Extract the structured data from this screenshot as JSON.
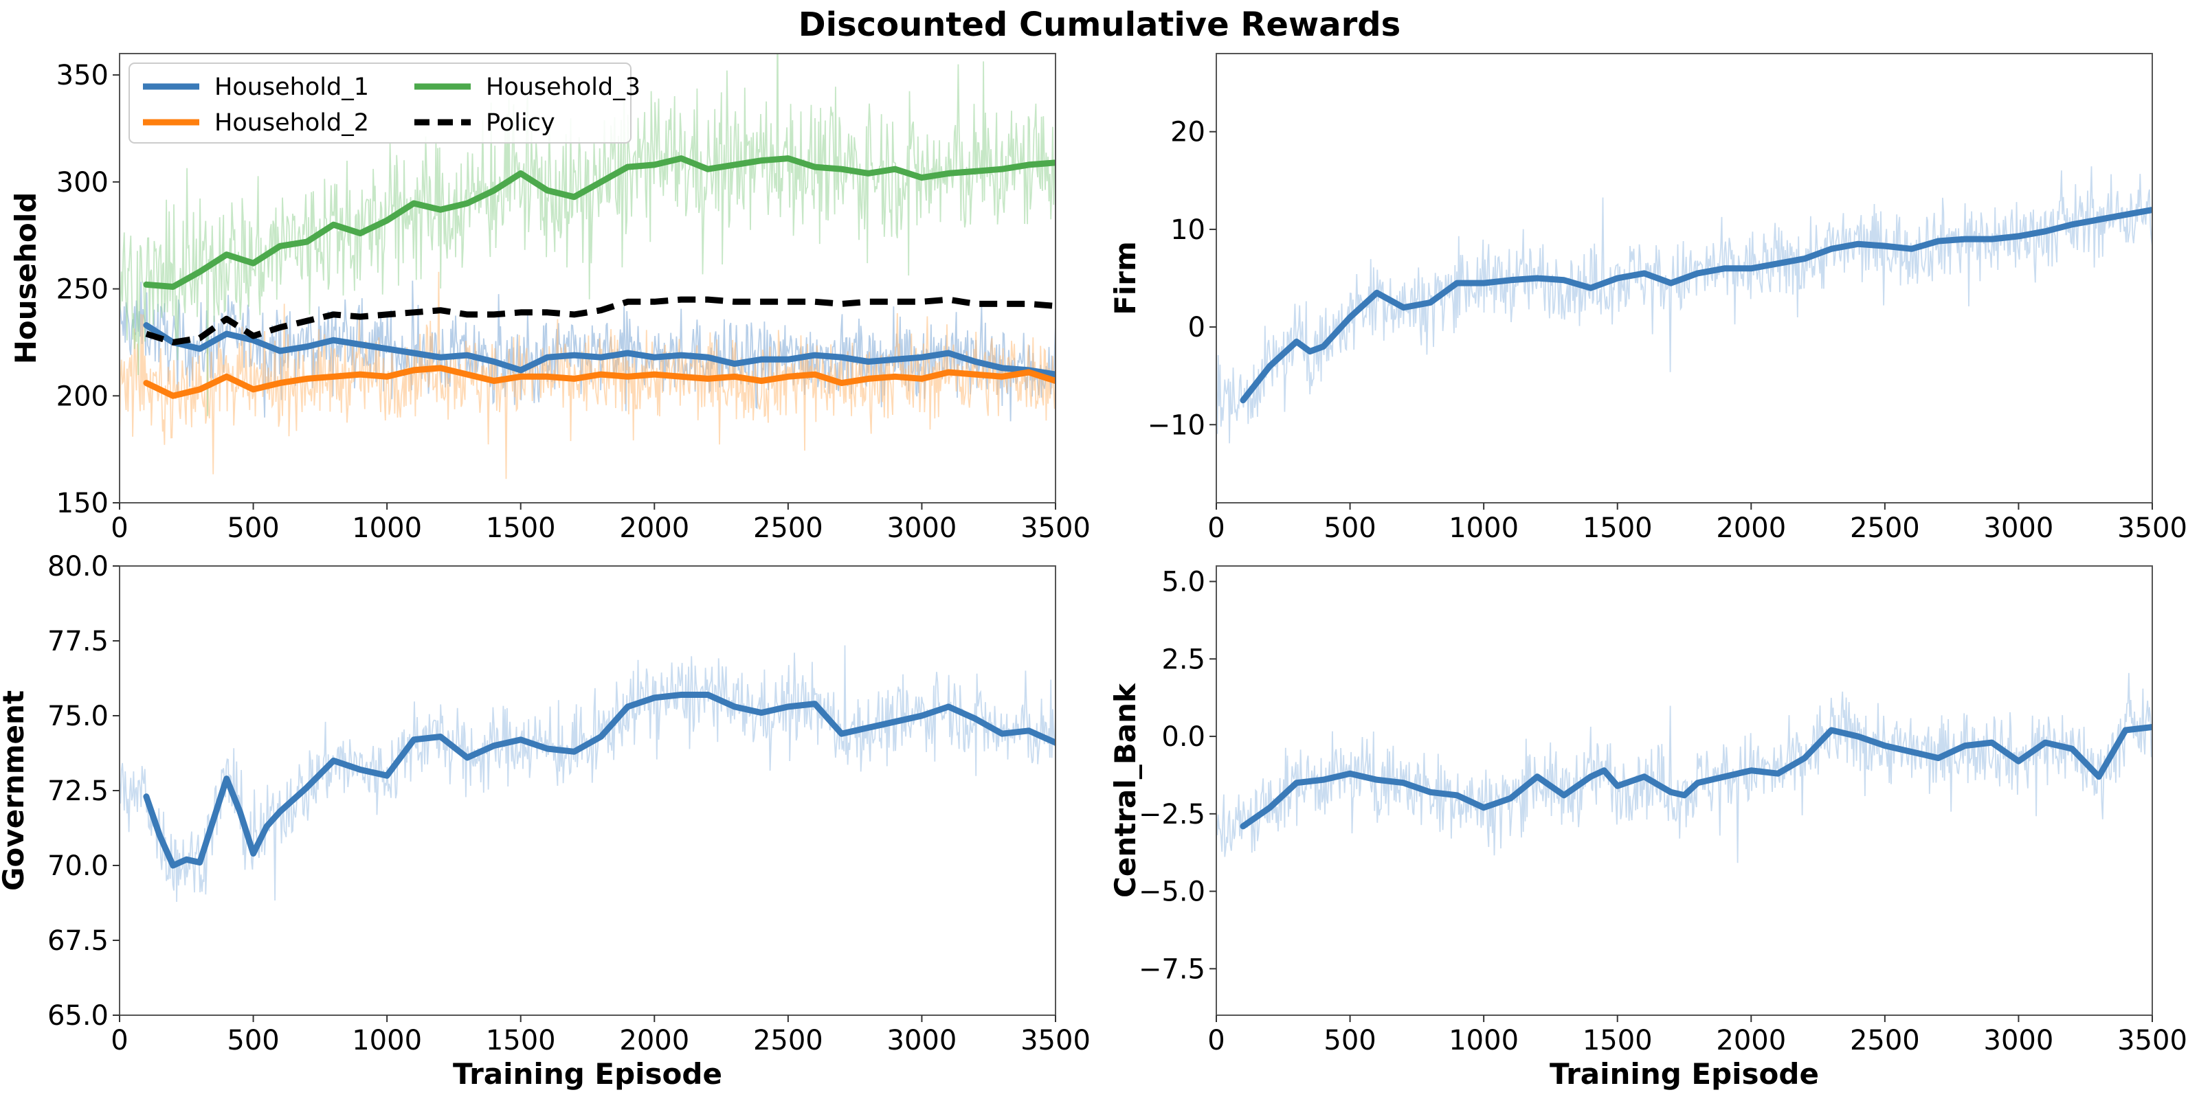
{
  "figure": {
    "title": "Discounted Cumulative Rewards"
  },
  "chart_data": [
    {
      "type": "line",
      "panel": "top-left",
      "title": "",
      "xlabel": "",
      "ylabel": "Household",
      "xlim": [
        0,
        3500
      ],
      "ylim": [
        150,
        360
      ],
      "xticks": [
        0,
        500,
        1000,
        1500,
        2000,
        2500,
        3000,
        3500
      ],
      "yticks": [
        150,
        200,
        250,
        300,
        350
      ],
      "tick_labels_x": [
        "0",
        "500",
        "1000",
        "1500",
        "2000",
        "2500",
        "3000",
        "3500"
      ],
      "tick_labels_y": [
        "150",
        "200",
        "250",
        "300",
        "350"
      ],
      "grid": false,
      "legend": {
        "placement": "top-left",
        "columns": 2
      },
      "series": [
        {
          "name": "Household_1",
          "color": "#3a7ab8",
          "raw_color": "#7aa6d6",
          "style": "solid",
          "x": [
            100,
            200,
            300,
            400,
            500,
            600,
            700,
            800,
            900,
            1000,
            1100,
            1200,
            1300,
            1400,
            1500,
            1600,
            1700,
            1800,
            1900,
            2000,
            2100,
            2200,
            2300,
            2400,
            2500,
            2600,
            2700,
            2800,
            2900,
            3000,
            3100,
            3200,
            3300,
            3400,
            3500
          ],
          "values": [
            233,
            225,
            222,
            229,
            226,
            221,
            223,
            226,
            224,
            222,
            220,
            218,
            219,
            216,
            212,
            218,
            219,
            218,
            220,
            218,
            219,
            218,
            215,
            217,
            217,
            219,
            218,
            216,
            217,
            218,
            220,
            216,
            213,
            212,
            210
          ]
        },
        {
          "name": "Household_2",
          "color": "#ff7f0e",
          "raw_color": "#ffbb78",
          "style": "solid",
          "x": [
            100,
            200,
            300,
            400,
            500,
            600,
            700,
            800,
            900,
            1000,
            1100,
            1200,
            1300,
            1400,
            1500,
            1600,
            1700,
            1800,
            1900,
            2000,
            2100,
            2200,
            2300,
            2400,
            2500,
            2600,
            2700,
            2800,
            2900,
            3000,
            3100,
            3200,
            3300,
            3400,
            3500
          ],
          "values": [
            206,
            200,
            203,
            209,
            203,
            206,
            208,
            209,
            210,
            209,
            212,
            213,
            210,
            207,
            209,
            209,
            208,
            210,
            209,
            210,
            209,
            208,
            209,
            207,
            209,
            210,
            206,
            208,
            209,
            208,
            211,
            210,
            209,
            211,
            207
          ]
        },
        {
          "name": "Household_3",
          "color": "#4ca94c",
          "raw_color": "#98d498",
          "style": "solid",
          "x": [
            100,
            200,
            300,
            400,
            500,
            600,
            700,
            800,
            900,
            1000,
            1100,
            1200,
            1300,
            1400,
            1500,
            1600,
            1700,
            1800,
            1900,
            2000,
            2100,
            2200,
            2300,
            2400,
            2500,
            2600,
            2700,
            2800,
            2900,
            3000,
            3100,
            3200,
            3300,
            3400,
            3500
          ],
          "values": [
            252,
            251,
            258,
            266,
            262,
            270,
            272,
            280,
            276,
            282,
            290,
            287,
            290,
            296,
            304,
            296,
            293,
            300,
            307,
            308,
            311,
            306,
            308,
            310,
            311,
            307,
            306,
            304,
            306,
            302,
            304,
            305,
            306,
            308,
            309
          ]
        },
        {
          "name": "Policy",
          "color": "#000000",
          "style": "dashed",
          "x": [
            100,
            200,
            300,
            400,
            500,
            600,
            700,
            800,
            900,
            1000,
            1100,
            1200,
            1300,
            1400,
            1500,
            1600,
            1700,
            1800,
            1900,
            2000,
            2100,
            2200,
            2300,
            2400,
            2500,
            2600,
            2700,
            2800,
            2900,
            3000,
            3100,
            3200,
            3300,
            3400,
            3500
          ],
          "values": [
            229,
            225,
            227,
            236,
            228,
            232,
            235,
            238,
            237,
            238,
            239,
            240,
            238,
            238,
            239,
            239,
            238,
            240,
            244,
            244,
            245,
            245,
            244,
            244,
            244,
            244,
            243,
            244,
            244,
            244,
            245,
            243,
            243,
            243,
            242
          ]
        }
      ]
    },
    {
      "type": "line",
      "panel": "top-right",
      "title": "",
      "xlabel": "",
      "ylabel": "Firm",
      "xlim": [
        0,
        3500
      ],
      "ylim": [
        -18,
        28
      ],
      "xticks": [
        0,
        500,
        1000,
        1500,
        2000,
        2500,
        3000,
        3500
      ],
      "yticks": [
        -10,
        0,
        10,
        20
      ],
      "tick_labels_x": [
        "0",
        "500",
        "1000",
        "1500",
        "2000",
        "2500",
        "3000",
        "3500"
      ],
      "tick_labels_y": [
        "−10",
        "0",
        "10",
        "20"
      ],
      "grid": false,
      "series": [
        {
          "color": "#3a7ab8",
          "raw_color": "#9cc0e4",
          "style": "solid",
          "x": [
            100,
            200,
            300,
            350,
            400,
            500,
            600,
            700,
            800,
            900,
            1000,
            1100,
            1200,
            1300,
            1400,
            1500,
            1600,
            1700,
            1800,
            1900,
            2000,
            2100,
            2200,
            2300,
            2400,
            2500,
            2600,
            2700,
            2800,
            2900,
            3000,
            3100,
            3200,
            3300,
            3400,
            3500
          ],
          "values": [
            -7.5,
            -4.0,
            -1.5,
            -2.5,
            -2.0,
            1.0,
            3.5,
            2.0,
            2.5,
            4.5,
            4.5,
            4.8,
            5.0,
            4.8,
            4.0,
            5.0,
            5.5,
            4.5,
            5.5,
            6.0,
            6.0,
            6.5,
            7.0,
            8.0,
            8.5,
            8.3,
            8.0,
            8.8,
            9.0,
            9.0,
            9.3,
            9.8,
            10.5,
            11.0,
            11.5,
            12.0
          ]
        }
      ]
    },
    {
      "type": "line",
      "panel": "bottom-left",
      "title": "",
      "xlabel": "Training Episode",
      "ylabel": "Government",
      "xlim": [
        0,
        3500
      ],
      "ylim": [
        65,
        80
      ],
      "xticks": [
        0,
        500,
        1000,
        1500,
        2000,
        2500,
        3000,
        3500
      ],
      "yticks": [
        65,
        67.5,
        70,
        72.5,
        75,
        77.5,
        80
      ],
      "tick_labels_x": [
        "0",
        "500",
        "1000",
        "1500",
        "2000",
        "2500",
        "3000",
        "3500"
      ],
      "tick_labels_y": [
        "65.0",
        "67.5",
        "70.0",
        "72.5",
        "75.0",
        "77.5",
        "80.0"
      ],
      "grid": false,
      "series": [
        {
          "color": "#3a7ab8",
          "raw_color": "#9cc0e4",
          "style": "solid",
          "x": [
            100,
            150,
            200,
            250,
            300,
            350,
            400,
            450,
            500,
            550,
            600,
            700,
            800,
            900,
            1000,
            1100,
            1200,
            1300,
            1400,
            1500,
            1600,
            1700,
            1800,
            1900,
            2000,
            2100,
            2200,
            2300,
            2400,
            2500,
            2600,
            2700,
            2800,
            2900,
            3000,
            3100,
            3200,
            3300,
            3400,
            3500
          ],
          "values": [
            72.3,
            71.0,
            70.0,
            70.2,
            70.1,
            71.5,
            72.9,
            71.8,
            70.4,
            71.3,
            71.8,
            72.6,
            73.5,
            73.2,
            73.0,
            74.2,
            74.3,
            73.6,
            74.0,
            74.2,
            73.9,
            73.8,
            74.3,
            75.3,
            75.6,
            75.7,
            75.7,
            75.3,
            75.1,
            75.3,
            75.4,
            74.4,
            74.6,
            74.8,
            75.0,
            75.3,
            74.9,
            74.4,
            74.5,
            74.1
          ]
        }
      ]
    },
    {
      "type": "line",
      "panel": "bottom-right",
      "title": "",
      "xlabel": "Training Episode",
      "ylabel": "Central_Bank",
      "xlim": [
        0,
        3500
      ],
      "ylim": [
        -9,
        5.5
      ],
      "xticks": [
        0,
        500,
        1000,
        1500,
        2000,
        2500,
        3000,
        3500
      ],
      "yticks": [
        -7.5,
        -5,
        -2.5,
        0,
        2.5,
        5
      ],
      "tick_labels_x": [
        "0",
        "500",
        "1000",
        "1500",
        "2000",
        "2500",
        "3000",
        "3500"
      ],
      "tick_labels_y": [
        "−7.5",
        "−5.0",
        "−2.5",
        "0.0",
        "2.5",
        "5.0"
      ],
      "grid": false,
      "series": [
        {
          "color": "#3a7ab8",
          "raw_color": "#9cc0e4",
          "style": "solid",
          "x": [
            100,
            200,
            300,
            400,
            500,
            600,
            700,
            800,
            900,
            1000,
            1100,
            1200,
            1300,
            1400,
            1450,
            1500,
            1600,
            1700,
            1750,
            1800,
            1900,
            2000,
            2100,
            2200,
            2300,
            2400,
            2500,
            2600,
            2700,
            2800,
            2900,
            3000,
            3100,
            3200,
            3300,
            3400,
            3500
          ],
          "values": [
            -2.9,
            -2.3,
            -1.5,
            -1.4,
            -1.2,
            -1.4,
            -1.5,
            -1.8,
            -1.9,
            -2.3,
            -2.0,
            -1.3,
            -1.9,
            -1.3,
            -1.1,
            -1.6,
            -1.3,
            -1.8,
            -1.9,
            -1.5,
            -1.3,
            -1.1,
            -1.2,
            -0.7,
            0.2,
            0.0,
            -0.3,
            -0.5,
            -0.7,
            -0.3,
            -0.2,
            -0.8,
            -0.2,
            -0.4,
            -1.3,
            0.2,
            0.3
          ]
        }
      ]
    }
  ]
}
